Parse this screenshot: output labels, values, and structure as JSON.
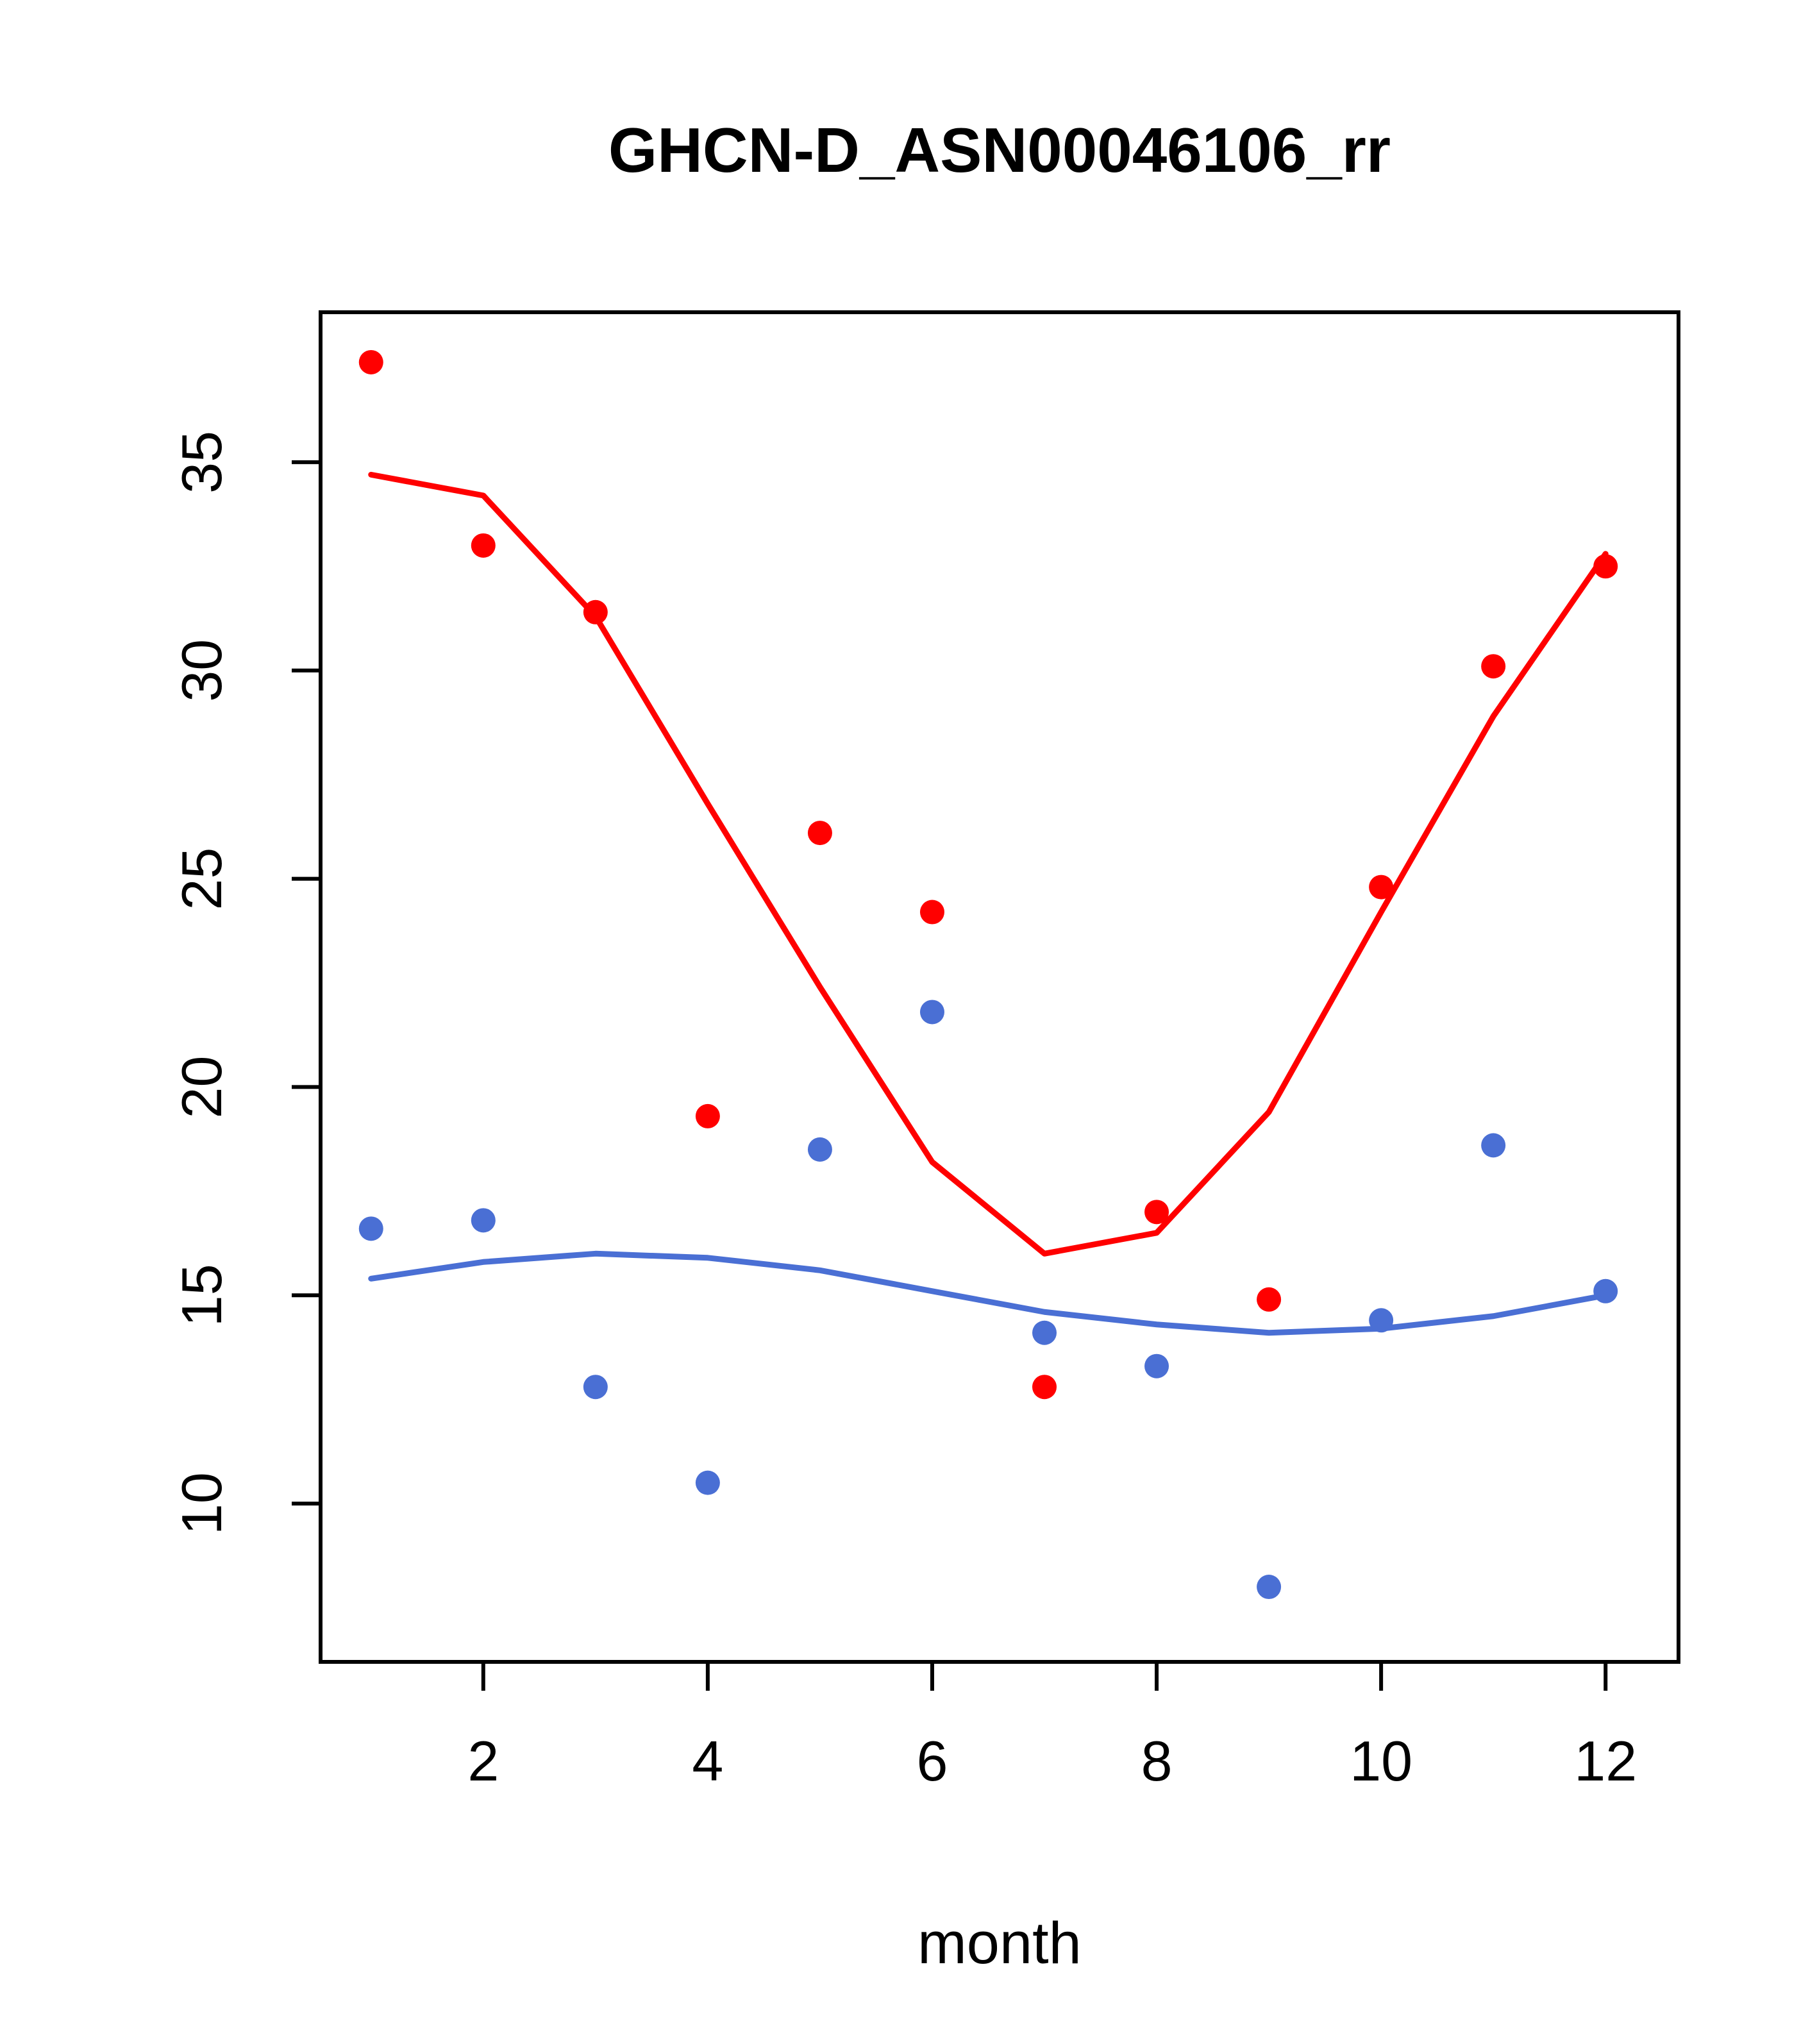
{
  "chart_data": {
    "type": "scatter",
    "title": "GHCN-D_ASN00046106_rr",
    "xlabel": "month",
    "ylabel": "",
    "xlim": [
      0.55,
      12.65
    ],
    "ylim": [
      6.2,
      38.6
    ],
    "xticks": [
      2,
      4,
      6,
      8,
      10,
      12
    ],
    "yticks": [
      10,
      15,
      20,
      25,
      30,
      35
    ],
    "grid": false,
    "legend": "none",
    "colors": {
      "red": "#ff0000",
      "blue": "#4a6fd4",
      "axis": "#000000",
      "background": "#ffffff"
    },
    "x_months": [
      1,
      2,
      3,
      4,
      5,
      6,
      7,
      8,
      9,
      10,
      11,
      12
    ],
    "series": [
      {
        "name": "red-scatter",
        "type": "points",
        "color": "#ff0000",
        "x": [
          1,
          2,
          3,
          4,
          5,
          6,
          7,
          8,
          9,
          10,
          11,
          12
        ],
        "y": [
          37.4,
          33.0,
          31.4,
          19.3,
          26.1,
          24.2,
          12.8,
          17.0,
          14.9,
          24.8,
          30.1,
          32.5
        ]
      },
      {
        "name": "blue-scatter",
        "type": "points",
        "color": "#4a6fd4",
        "x": [
          1,
          2,
          3,
          4,
          5,
          6,
          7,
          8,
          9,
          10,
          11,
          12
        ],
        "y": [
          16.6,
          16.8,
          12.8,
          10.5,
          18.5,
          21.8,
          14.1,
          13.3,
          8.0,
          14.4,
          18.6,
          15.1
        ]
      },
      {
        "name": "red-smooth",
        "type": "line",
        "color": "#ff0000",
        "x": [
          1,
          2,
          3,
          4,
          5,
          6,
          7,
          8,
          9,
          10,
          11,
          12
        ],
        "y": [
          34.7,
          34.2,
          31.3,
          26.8,
          22.4,
          18.2,
          16.0,
          16.5,
          19.4,
          24.2,
          28.9,
          32.8
        ]
      },
      {
        "name": "blue-smooth",
        "type": "line",
        "color": "#4a6fd4",
        "x": [
          1,
          2,
          3,
          4,
          5,
          6,
          7,
          8,
          9,
          10,
          11,
          12
        ],
        "y": [
          15.4,
          15.8,
          16.0,
          15.9,
          15.6,
          15.1,
          14.6,
          14.3,
          14.1,
          14.2,
          14.5,
          15.0
        ]
      }
    ]
  }
}
